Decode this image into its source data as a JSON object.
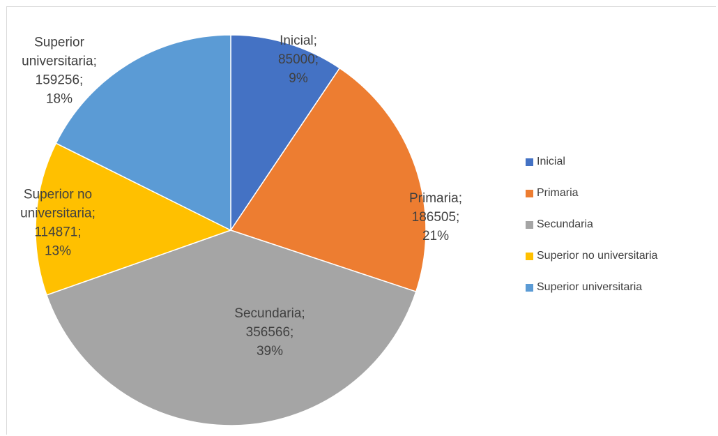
{
  "chart_data": {
    "type": "pie",
    "title": "",
    "start_angle_deg": 0,
    "direction": "clockwise",
    "legend_position": "right",
    "slices": [
      {
        "name": "Inicial",
        "value": 85000,
        "percent": "9%",
        "value_label": "85000;",
        "color": "#4472C4",
        "label_lines": [
          "Inicial;",
          "85000;",
          "9%"
        ]
      },
      {
        "name": "Primaria",
        "value": 186505,
        "percent": "21%",
        "value_label": "186505;",
        "color": "#ED7D31",
        "label_lines": [
          "Primaria;",
          "186505;",
          "21%"
        ]
      },
      {
        "name": "Secundaria",
        "value": 356566,
        "percent": "39%",
        "value_label": "356566;",
        "color": "#A5A5A5",
        "label_lines": [
          "Secundaria;",
          "356566;",
          "39%"
        ]
      },
      {
        "name": "Superior no universitaria",
        "value": 114871,
        "percent": "13%",
        "value_label": "114871;",
        "color": "#FFC000",
        "label_lines": [
          "Superior no",
          "universitaria;",
          "114871;",
          "13%"
        ]
      },
      {
        "name": "Superior universitaria",
        "value": 159256,
        "percent": "18%",
        "value_label": "159256;",
        "color": "#5B9BD5",
        "label_lines": [
          "Superior",
          "universitaria;",
          "159256;",
          "18%"
        ]
      }
    ]
  }
}
